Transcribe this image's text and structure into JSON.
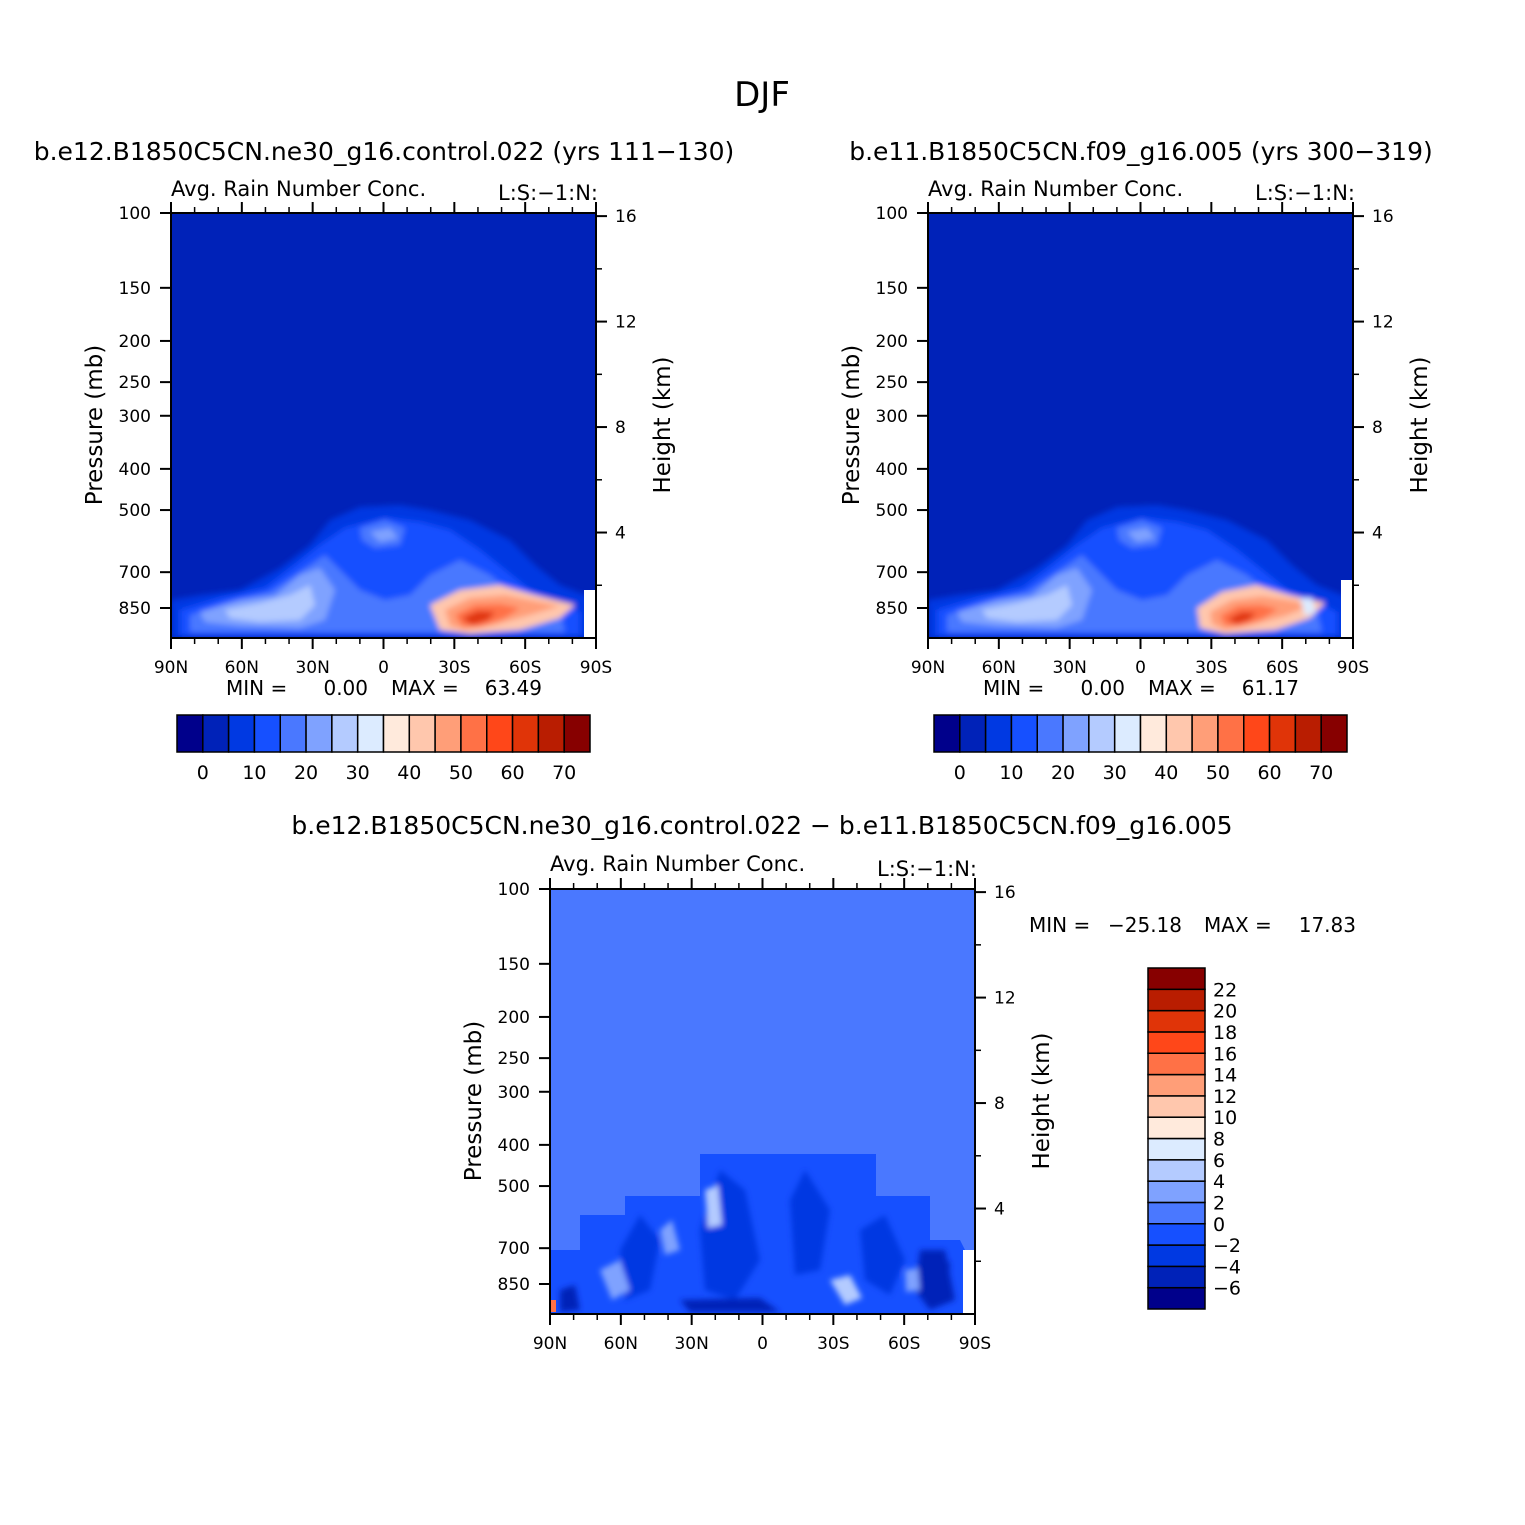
{
  "figure": {
    "title": "DJF"
  },
  "chart_data": [
    {
      "type": "heatmap",
      "case": "b.e12.B1850C5CN.ne30_g16.control.022",
      "title": "b.e12.B1850C5CN.ne30_g16.control.022 (yrs 111−130)",
      "variable": "Avg. Rain Number Conc.",
      "corner_label": "L:S:−1:N:",
      "xlabel": "",
      "ylabel": "Pressure (mb)",
      "y2label": "Height (km)",
      "x_ticks": [
        "90N",
        "60N",
        "30N",
        "0",
        "30S",
        "60S",
        "90S"
      ],
      "x_tick_values": [
        90,
        60,
        30,
        0,
        -30,
        -60,
        -90
      ],
      "y_ticks": [
        100,
        150,
        200,
        250,
        300,
        400,
        500,
        700,
        850
      ],
      "y_range_mb": [
        100,
        1000
      ],
      "y2_ticks": [
        16,
        12,
        8,
        4
      ],
      "y_scale": "log",
      "min_label": "MIN =",
      "min_value": "0.00",
      "max_label": "MAX =",
      "max_value": "63.49",
      "colorbar": {
        "orientation": "horizontal",
        "levels": [
          0,
          5,
          10,
          15,
          20,
          25,
          30,
          35,
          40,
          45,
          50,
          55,
          60,
          65,
          70
        ],
        "labels": [
          "0",
          "10",
          "20",
          "30",
          "40",
          "50",
          "60",
          "70"
        ],
        "colors": [
          "#00008b",
          "#0022b8",
          "#0039e2",
          "#1650ff",
          "#4a78ff",
          "#7fa2ff",
          "#b4cbff",
          "#dcebff",
          "#ffeadc",
          "#ffc7ad",
          "#ff9e78",
          "#ff7146",
          "#ff4719",
          "#e03408",
          "#b91d01",
          "#870000"
        ]
      },
      "features": [
        {
          "lat": -50,
          "p_mb": 870,
          "value": 60,
          "note": "max"
        },
        {
          "lat": 45,
          "p_mb": 800,
          "value": 30
        }
      ]
    },
    {
      "type": "heatmap",
      "case": "b.e11.B1850C5CN.f09_g16.005",
      "title": "b.e11.B1850C5CN.f09_g16.005 (yrs 300−319)",
      "variable": "Avg. Rain Number Conc.",
      "corner_label": "L:S:−1:N:",
      "xlabel": "",
      "ylabel": "Pressure (mb)",
      "y2label": "Height (km)",
      "x_ticks": [
        "90N",
        "60N",
        "30N",
        "0",
        "30S",
        "60S",
        "90S"
      ],
      "x_tick_values": [
        90,
        60,
        30,
        0,
        -30,
        -60,
        -90
      ],
      "y_ticks": [
        100,
        150,
        200,
        250,
        300,
        400,
        500,
        700,
        850
      ],
      "y_range_mb": [
        100,
        1000
      ],
      "y2_ticks": [
        16,
        12,
        8,
        4
      ],
      "y_scale": "log",
      "min_label": "MIN =",
      "min_value": "0.00",
      "max_label": "MAX =",
      "max_value": "61.17",
      "colorbar": {
        "orientation": "horizontal",
        "levels": [
          0,
          5,
          10,
          15,
          20,
          25,
          30,
          35,
          40,
          45,
          50,
          55,
          60,
          65,
          70
        ],
        "labels": [
          "0",
          "10",
          "20",
          "30",
          "40",
          "50",
          "60",
          "70"
        ],
        "colors": [
          "#00008b",
          "#0022b8",
          "#0039e2",
          "#1650ff",
          "#4a78ff",
          "#7fa2ff",
          "#b4cbff",
          "#dcebff",
          "#ffeadc",
          "#ffc7ad",
          "#ff9e78",
          "#ff7146",
          "#ff4719",
          "#e03408",
          "#b91d01",
          "#870000"
        ]
      },
      "features": [
        {
          "lat": -48,
          "p_mb": 860,
          "value": 58,
          "note": "max"
        },
        {
          "lat": 45,
          "p_mb": 800,
          "value": 30
        }
      ]
    },
    {
      "type": "heatmap",
      "title": "b.e12.B1850C5CN.ne30_g16.control.022 − b.e11.B1850C5CN.f09_g16.005",
      "variable": "Avg. Rain Number Conc.",
      "corner_label": "L:S:−1:N:",
      "xlabel": "",
      "ylabel": "Pressure (mb)",
      "y2label": "Height (km)",
      "x_ticks": [
        "90N",
        "60N",
        "30N",
        "0",
        "30S",
        "60S",
        "90S"
      ],
      "x_tick_values": [
        90,
        60,
        30,
        0,
        -30,
        -60,
        -90
      ],
      "y_ticks": [
        100,
        150,
        200,
        250,
        300,
        400,
        500,
        700,
        850
      ],
      "y_range_mb": [
        100,
        1000
      ],
      "y2_ticks": [
        16,
        12,
        8,
        4
      ],
      "y_scale": "log",
      "min_label": "MIN =",
      "min_value": "−25.18",
      "max_label": "MAX =",
      "max_value": "17.83",
      "colorbar": {
        "orientation": "vertical",
        "levels": [
          -6,
          -4,
          -2,
          0,
          2,
          4,
          6,
          8,
          10,
          12,
          14,
          16,
          18,
          20,
          22
        ],
        "labels": [
          "−6",
          "−4",
          "−2",
          "0",
          "2",
          "4",
          "6",
          "8",
          "10",
          "12",
          "14",
          "16",
          "18",
          "20",
          "22"
        ],
        "colors": [
          "#00008b",
          "#0022b8",
          "#0039e2",
          "#1650ff",
          "#4a78ff",
          "#7fa2ff",
          "#b4cbff",
          "#dcebff",
          "#ffeadc",
          "#ffc7ad",
          "#ff9e78",
          "#ff7146",
          "#ff4719",
          "#e03408",
          "#b91d01",
          "#870000"
        ]
      }
    }
  ]
}
